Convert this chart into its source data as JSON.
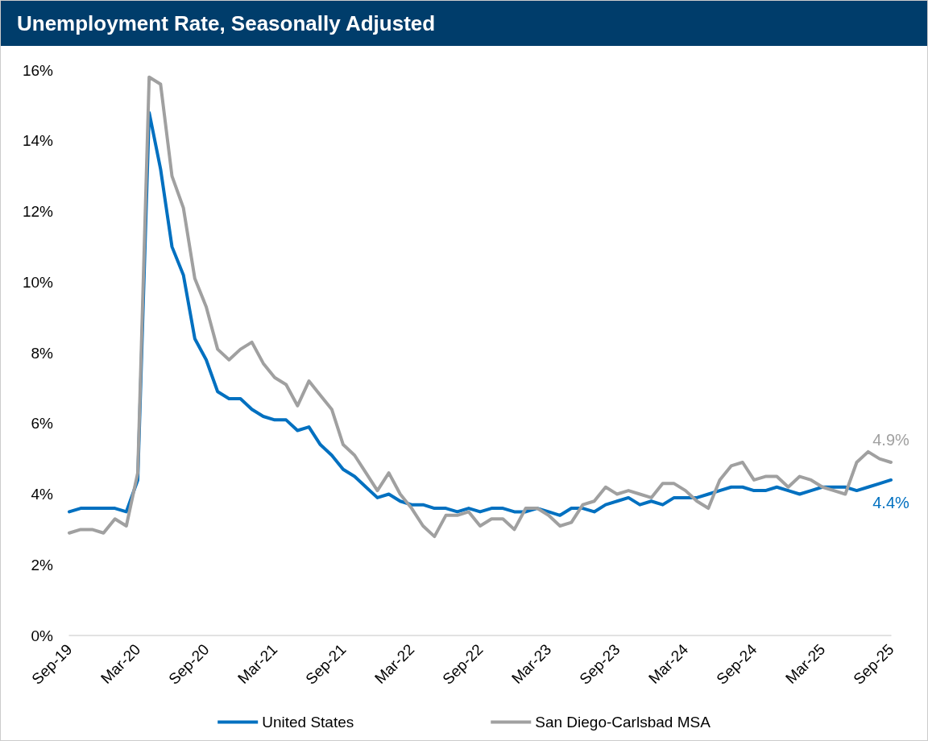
{
  "chart_data": {
    "type": "line",
    "title": "Unemployment Rate, Seasonally Adjusted",
    "categories": [
      "Sep-19",
      null,
      null,
      null,
      null,
      null,
      "Mar-20",
      null,
      null,
      null,
      null,
      null,
      "Sep-20",
      null,
      null,
      null,
      null,
      null,
      "Mar-21",
      null,
      null,
      null,
      null,
      null,
      "Sep-21",
      null,
      null,
      null,
      null,
      null,
      "Mar-22",
      null,
      null,
      null,
      null,
      null,
      "Sep-22",
      null,
      null,
      null,
      null,
      null,
      "Mar-23",
      null,
      null,
      null,
      null,
      null,
      "Sep-23",
      null,
      null,
      null,
      null,
      null,
      "Mar-24",
      null,
      null,
      null,
      null,
      null,
      "Sep-24",
      null,
      null,
      null,
      null,
      null,
      "Mar-25",
      null,
      null,
      null,
      null,
      null,
      "Sep-25"
    ],
    "series": [
      {
        "name": "United States",
        "color": "#0070c0",
        "values": [
          3.5,
          3.6,
          3.6,
          3.6,
          3.6,
          3.5,
          4.4,
          14.8,
          13.2,
          11.0,
          10.2,
          8.4,
          7.8,
          6.9,
          6.7,
          6.7,
          6.4,
          6.2,
          6.1,
          6.1,
          5.8,
          5.9,
          5.4,
          5.1,
          4.7,
          4.5,
          4.2,
          3.9,
          4.0,
          3.8,
          3.7,
          3.7,
          3.6,
          3.6,
          3.5,
          3.6,
          3.5,
          3.6,
          3.6,
          3.5,
          3.5,
          3.6,
          3.5,
          3.4,
          3.6,
          3.6,
          3.5,
          3.7,
          3.8,
          3.9,
          3.7,
          3.8,
          3.7,
          3.9,
          3.9,
          3.9,
          4.0,
          4.1,
          4.2,
          4.2,
          4.1,
          4.1,
          4.2,
          4.1,
          4.0,
          4.1,
          4.2,
          4.2,
          4.2,
          4.1,
          4.2,
          4.3,
          4.4
        ],
        "value_labels": [
          null,
          null,
          null,
          null,
          null,
          null,
          null,
          null,
          null,
          null,
          null,
          null,
          null,
          null,
          null,
          null,
          null,
          null,
          null,
          null,
          null,
          null,
          null,
          null,
          null,
          null,
          null,
          null,
          null,
          null,
          null,
          null,
          null,
          null,
          null,
          null,
          null,
          null,
          null,
          null,
          null,
          null,
          null,
          null,
          null,
          null,
          null,
          null,
          null,
          null,
          null,
          null,
          null,
          null,
          null,
          null,
          null,
          null,
          null,
          null,
          null,
          null,
          null,
          null,
          null,
          null,
          null,
          null,
          null,
          null,
          null,
          null,
          "4.4%"
        ]
      },
      {
        "name": "San Diego-Carlsbad MSA",
        "color": "#a0a0a0",
        "values": [
          2.9,
          3.0,
          3.0,
          2.9,
          3.3,
          3.1,
          4.6,
          15.8,
          15.6,
          13.0,
          12.1,
          10.1,
          9.3,
          8.1,
          7.8,
          8.1,
          8.3,
          7.7,
          7.3,
          7.1,
          6.5,
          7.2,
          6.8,
          6.4,
          5.4,
          5.1,
          4.6,
          4.1,
          4.6,
          4.0,
          3.6,
          3.1,
          2.8,
          3.4,
          3.4,
          3.5,
          3.1,
          3.3,
          3.3,
          3.0,
          3.6,
          3.6,
          3.4,
          3.1,
          3.2,
          3.7,
          3.8,
          4.2,
          4.0,
          4.1,
          4.0,
          3.9,
          4.3,
          4.3,
          4.1,
          3.8,
          3.6,
          4.4,
          4.8,
          4.9,
          4.4,
          4.5,
          4.5,
          4.2,
          4.5,
          4.4,
          4.2,
          4.1,
          4.0,
          4.9,
          5.2,
          5.0,
          4.9
        ],
        "value_labels": [
          null,
          null,
          null,
          null,
          null,
          null,
          null,
          null,
          null,
          null,
          null,
          null,
          null,
          null,
          null,
          null,
          null,
          null,
          null,
          null,
          null,
          null,
          null,
          null,
          null,
          null,
          null,
          null,
          null,
          null,
          null,
          null,
          null,
          null,
          null,
          null,
          null,
          null,
          null,
          null,
          null,
          null,
          null,
          null,
          null,
          null,
          null,
          null,
          null,
          null,
          null,
          null,
          null,
          null,
          null,
          null,
          null,
          null,
          null,
          null,
          null,
          null,
          null,
          null,
          null,
          null,
          null,
          null,
          null,
          null,
          null,
          null,
          "4.9%"
        ]
      }
    ],
    "ylim": [
      0,
      16
    ],
    "yticks": [
      {
        "value": 0,
        "label": "0%"
      },
      {
        "value": 2,
        "label": "2%"
      },
      {
        "value": 4,
        "label": "4%"
      },
      {
        "value": 6,
        "label": "6%"
      },
      {
        "value": 8,
        "label": "8%"
      },
      {
        "value": 10,
        "label": "10%"
      },
      {
        "value": 12,
        "label": "12%"
      },
      {
        "value": 14,
        "label": "14%"
      },
      {
        "value": 16,
        "label": "16%"
      }
    ],
    "grid": false,
    "legend": "bottom",
    "line_style": "solid"
  }
}
